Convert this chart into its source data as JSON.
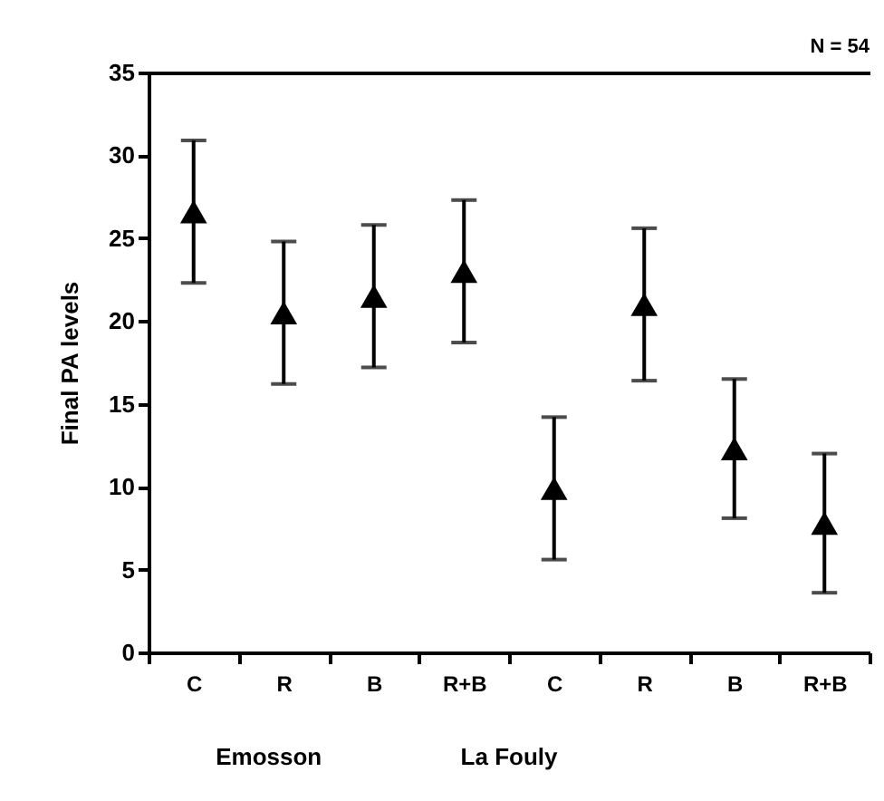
{
  "chart_data": {
    "type": "scatter",
    "ylabel": "Final PA levels",
    "categories": [
      "C",
      "R",
      "B",
      "R+B",
      "C",
      "R",
      "B",
      "R+B"
    ],
    "values": [
      26.6,
      20.5,
      21.5,
      23.0,
      9.9,
      21.0,
      12.3,
      7.8
    ],
    "errors": [
      4.3,
      4.3,
      4.3,
      4.3,
      4.3,
      4.6,
      4.2,
      4.2
    ],
    "color": "#000000",
    "marker": "triangle",
    "ylim": [
      0,
      35
    ],
    "yticks": [
      0,
      5,
      10,
      15,
      20,
      25,
      30,
      35
    ],
    "annotations": [
      "Emosson",
      "La Fouly",
      "N = 54"
    ]
  }
}
